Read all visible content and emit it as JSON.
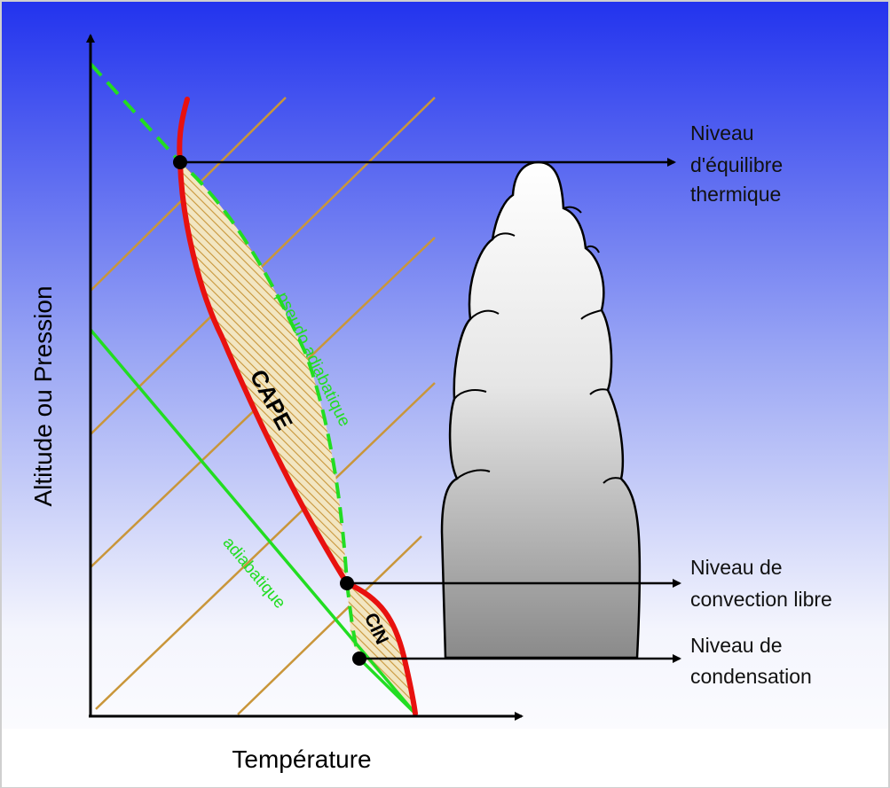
{
  "axes": {
    "y_label": "Altitude ou Pression",
    "x_label": "Température"
  },
  "curves": {
    "pseudo_adiabatic": "pseudo adiabatique",
    "adiabatic": "adiabatique"
  },
  "regions": {
    "cape": "CAPE",
    "cin": "CIN"
  },
  "levels": [
    {
      "lines": [
        "Niveau",
        "d'équilibre",
        "thermique"
      ]
    },
    {
      "lines": [
        "Niveau de",
        "convection libre"
      ]
    },
    {
      "lines": [
        "Niveau de",
        "condensation"
      ]
    }
  ]
}
